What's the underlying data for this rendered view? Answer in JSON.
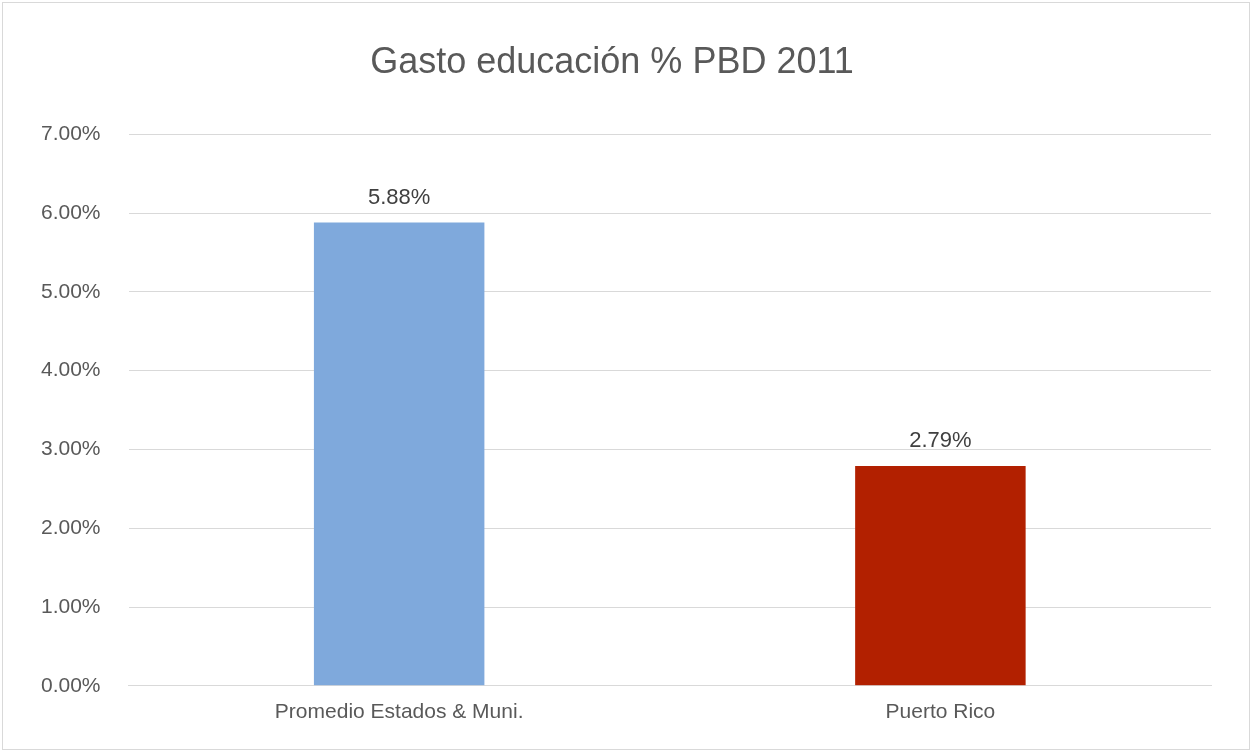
{
  "chart_data": {
    "type": "bar",
    "title": "Gasto educación % PBD 2011",
    "categories": [
      "Promedio Estados & Muni.",
      "Puerto Rico"
    ],
    "values": [
      5.88,
      2.79
    ],
    "colors": [
      "#7fa9dc",
      "#b22000"
    ],
    "value_labels": [
      "5.88%",
      "2.79%"
    ],
    "ylim": [
      0,
      7
    ],
    "yticks": [
      {
        "value": 0,
        "label": "0.00%"
      },
      {
        "value": 1,
        "label": "1.00%"
      },
      {
        "value": 2,
        "label": "2.00%"
      },
      {
        "value": 3,
        "label": "3.00%"
      },
      {
        "value": 4,
        "label": "4.00%"
      },
      {
        "value": 5,
        "label": "5.00%"
      },
      {
        "value": 6,
        "label": "6.00%"
      },
      {
        "value": 7,
        "label": "7.00%"
      }
    ],
    "grid": "y",
    "legend": false
  }
}
